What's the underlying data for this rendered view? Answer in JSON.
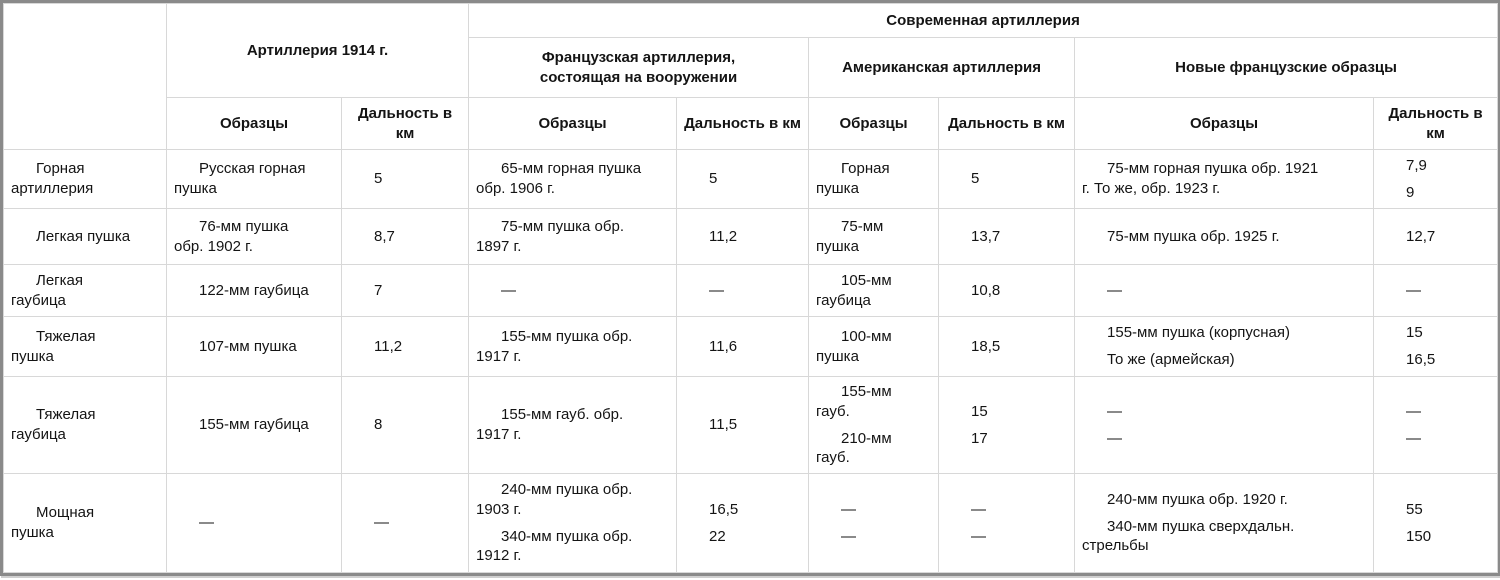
{
  "header": {
    "modern": "Современная артиллерия",
    "art1914": "Артиллерия 1914 г.",
    "french_inservice": "Французская артиллерия,\nсостоящая на вооружении",
    "american": "Американская артиллерия",
    "new_french": "Новые французские образцы",
    "samples": "Образцы",
    "range_km": "Дальность в км"
  },
  "rows": [
    {
      "cells": [
        [
          [
            "Горная",
            "артиллерия"
          ]
        ],
        [
          [
            "Русская горная",
            "пушка"
          ]
        ],
        [
          [
            "5"
          ]
        ],
        [
          [
            "65-мм горная пушка",
            "обр. 1906 г."
          ]
        ],
        [
          [
            "5"
          ]
        ],
        [
          [
            "Горная",
            "пушка"
          ]
        ],
        [
          [
            "5"
          ]
        ],
        [
          [
            "75-мм горная пушка обр. 1921",
            "г. То же, обр. 1923 г."
          ]
        ],
        [
          [
            "7,9"
          ],
          [
            "9"
          ]
        ]
      ]
    },
    {
      "cells": [
        [
          [
            "Легкая пушка"
          ]
        ],
        [
          [
            "76-мм пушка",
            "обр. 1902 г."
          ]
        ],
        [
          [
            "8,7"
          ]
        ],
        [
          [
            "75-мм пушка обр.",
            "1897 г."
          ]
        ],
        [
          [
            "11,2"
          ]
        ],
        [
          [
            "75-мм",
            "пушка"
          ]
        ],
        [
          [
            "13,7"
          ]
        ],
        [
          [
            "75-мм пушка обр. 1925 г."
          ]
        ],
        [
          [
            "12,7"
          ]
        ]
      ]
    },
    {
      "cells": [
        [
          [
            "Легкая",
            "гаубица"
          ]
        ],
        [
          [
            "122-мм гаубица"
          ]
        ],
        [
          [
            "7"
          ]
        ],
        [
          [
            "—"
          ]
        ],
        [
          [
            "—"
          ]
        ],
        [
          [
            "105-мм",
            "гаубица"
          ]
        ],
        [
          [
            "10,8"
          ]
        ],
        [
          [
            "—"
          ]
        ],
        [
          [
            "—"
          ]
        ]
      ]
    },
    {
      "cells": [
        [
          [
            "Тяжелая",
            "пушка"
          ]
        ],
        [
          [
            "107-мм пушка"
          ]
        ],
        [
          [
            "11,2"
          ]
        ],
        [
          [
            "155-мм пушка обр.",
            "1917 г."
          ]
        ],
        [
          [
            "11,6"
          ]
        ],
        [
          [
            "100-мм",
            "пушка"
          ]
        ],
        [
          [
            "18,5"
          ]
        ],
        [
          [
            "155-мм пушка (корпусная)"
          ],
          [
            "То же (армейская)"
          ]
        ],
        [
          [
            "15"
          ],
          [
            "16,5"
          ]
        ]
      ]
    },
    {
      "cells": [
        [
          [
            "Тяжелая",
            "гаубица"
          ]
        ],
        [
          [
            "155-мм гаубица"
          ]
        ],
        [
          [
            "8"
          ]
        ],
        [
          [
            "155-мм гауб. обр.",
            "1917 г."
          ]
        ],
        [
          [
            "11,5"
          ]
        ],
        [
          [
            "155-мм",
            "гауб."
          ],
          [
            "210-мм",
            "гауб."
          ]
        ],
        [
          [
            "15"
          ],
          [
            "17"
          ]
        ],
        [
          [
            "—"
          ],
          [
            "—"
          ]
        ],
        [
          [
            "—"
          ],
          [
            "—"
          ]
        ]
      ]
    },
    {
      "cells": [
        [
          [
            "Мощная",
            "пушка"
          ]
        ],
        [
          [
            "—"
          ]
        ],
        [
          [
            "—"
          ]
        ],
        [
          [
            "240-мм пушка обр.",
            "1903 г."
          ],
          [
            "340-мм пушка обр.",
            "1912 г."
          ]
        ],
        [
          [
            "16,5"
          ],
          [
            "22"
          ]
        ],
        [
          [
            "—"
          ],
          [
            "—"
          ]
        ],
        [
          [
            "—"
          ],
          [
            "—"
          ]
        ],
        [
          [
            "240-мм пушка обр. 1920 г."
          ],
          [
            "340-мм пушка сверхдальн.",
            "стрельбы"
          ]
        ],
        [
          [
            "55"
          ],
          [
            "150"
          ]
        ]
      ]
    }
  ]
}
